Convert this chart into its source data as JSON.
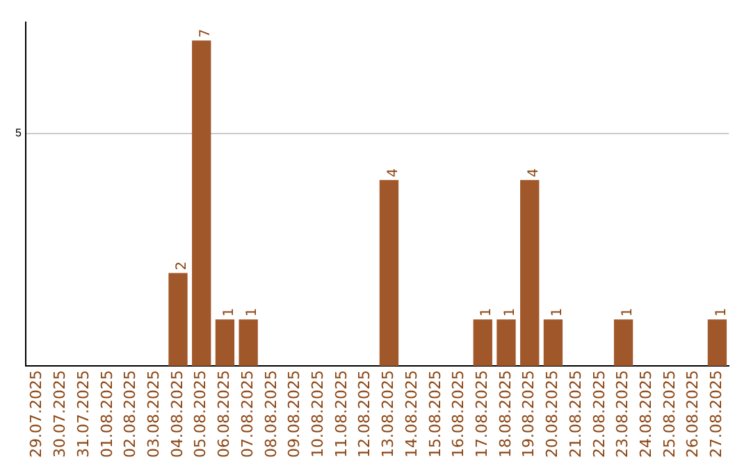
{
  "chart_data": {
    "type": "bar",
    "categories": [
      "29.07.2025",
      "30.07.2025",
      "31.07.2025",
      "01.08.2025",
      "02.08.2025",
      "03.08.2025",
      "04.08.2025",
      "05.08.2025",
      "06.08.2025",
      "07.08.2025",
      "08.08.2025",
      "09.08.2025",
      "10.08.2025",
      "11.08.2025",
      "12.08.2025",
      "13.08.2025",
      "14.08.2025",
      "15.08.2025",
      "16.08.2025",
      "17.08.2025",
      "18.08.2025",
      "19.08.2025",
      "20.08.2025",
      "21.08.2025",
      "22.08.2025",
      "23.08.2025",
      "24.08.2025",
      "25.08.2025",
      "26.08.2025",
      "27.08.2025"
    ],
    "values": [
      0,
      0,
      0,
      0,
      0,
      0,
      2,
      7,
      1,
      1,
      0,
      0,
      0,
      0,
      0,
      4,
      0,
      0,
      0,
      1,
      1,
      4,
      1,
      0,
      0,
      1,
      0,
      0,
      0,
      1
    ],
    "value_labels": [
      null,
      null,
      null,
      null,
      null,
      null,
      "2",
      "7",
      "1",
      "1",
      null,
      null,
      null,
      null,
      null,
      "4",
      null,
      null,
      null,
      "1",
      "1",
      "4",
      "1",
      null,
      null,
      "1",
      null,
      null,
      null,
      "1"
    ],
    "color": "#a0572a",
    "ylim": [
      0,
      7.4
    ],
    "yticks": [
      5
    ],
    "grid": "y",
    "legend": false
  }
}
